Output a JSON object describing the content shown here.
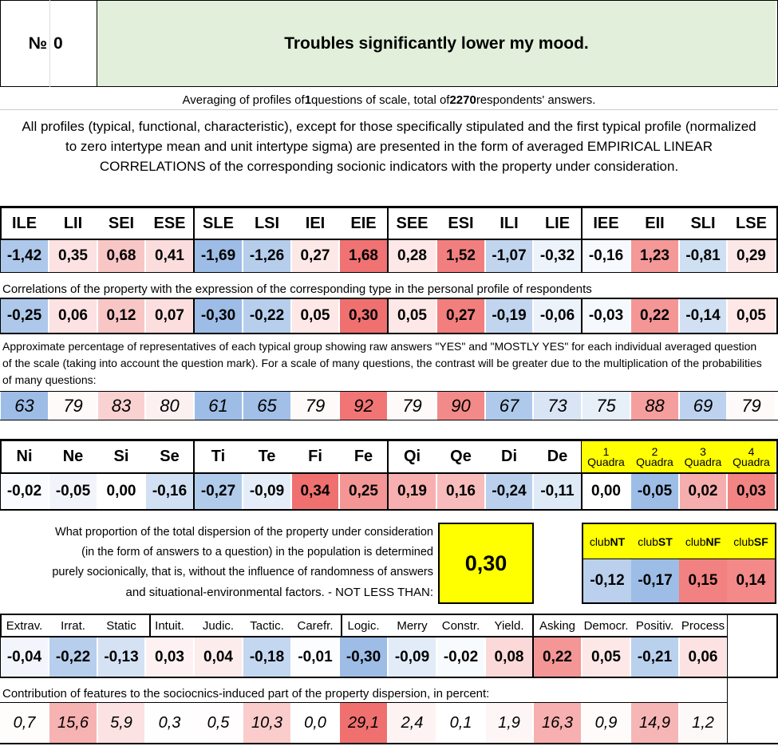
{
  "header": {
    "number_label": "№",
    "number": "0",
    "title": "Troubles significantly lower my mood."
  },
  "intro": {
    "averaging": [
      "Averaging of profiles of ",
      "1",
      " questions of scale, total of ",
      "2270",
      " respondents' answers."
    ],
    "description": "All profiles (typical, functional, characteristic), except for those specifically stipulated and the first typical profile (normalized to zero intertype mean and unit intertype sigma) are presented in the form of averaged EMPIRICAL LINEAR CORRELATIONS of the corresponding socionic indicators with the property under consideration."
  },
  "types": {
    "labels": [
      "ILE",
      "LII",
      "SEI",
      "ESE",
      "SLE",
      "LSI",
      "IEI",
      "EIE",
      "SEE",
      "ESI",
      "ILI",
      "LIE",
      "IEE",
      "EII",
      "SLI",
      "LSE"
    ],
    "profile": [
      "-1,42",
      "0,35",
      "0,68",
      "0,41",
      "-1,69",
      "-1,26",
      "0,27",
      "1,68",
      "0,28",
      "1,52",
      "-1,07",
      "-0,32",
      "-0,16",
      "1,23",
      "-0,81",
      "0,29"
    ],
    "correlations_note": "Correlations of the property with the expression of the corresponding type in the personal profile of respondents",
    "correlations": [
      "-0,25",
      "0,06",
      "0,12",
      "0,07",
      "-0,30",
      "-0,22",
      "0,05",
      "0,30",
      "0,05",
      "0,27",
      "-0,19",
      "-0,06",
      "-0,03",
      "0,22",
      "-0,14",
      "0,05"
    ],
    "percent_note": "Approximate percentage of representatives of each typical group showing raw answers \"YES\" and \"MOSTLY YES\" for each individual averaged question of the scale (taking into account the question mark). For a scale of many questions, the contrast will be greater due to the multiplication of the probabilities of many questions:",
    "percent": [
      "63",
      "79",
      "83",
      "80",
      "61",
      "65",
      "79",
      "92",
      "79",
      "90",
      "67",
      "73",
      "75",
      "88",
      "69",
      "79"
    ]
  },
  "functions": {
    "labels": [
      "Ni",
      "Ne",
      "Si",
      "Se",
      "Ti",
      "Te",
      "Fi",
      "Fe",
      "Qi",
      "Qe",
      "Di",
      "De"
    ],
    "values": [
      "-0,02",
      "-0,05",
      "0,00",
      "-0,16",
      "-0,27",
      "-0,09",
      "0,34",
      "0,25",
      "0,19",
      "0,16",
      "-0,24",
      "-0,11"
    ],
    "quadra_nums": [
      "1",
      "2",
      "3",
      "4"
    ],
    "quadra_word": "Quadra",
    "quadra_values": [
      "0,00",
      "-0,05",
      "0,02",
      "0,03"
    ]
  },
  "proportion": {
    "text_lines": [
      "What proportion of the total dispersion of the property under consideration",
      "(in the form of answers to a question) in the population is determined",
      "purely socionically, that is, without the influence of randomness of answers",
      "and situational-environmental factors. - NOT LESS THAN:"
    ],
    "value": "0,30"
  },
  "clubs": {
    "prefix": "club",
    "names": [
      "NT",
      "ST",
      "NF",
      "SF"
    ],
    "values": [
      "-0,12",
      "-0,17",
      "0,15",
      "0,14"
    ]
  },
  "traits": {
    "labels": [
      "Extrav.",
      "Irrat.",
      "Static",
      "Intuit.",
      "Judic.",
      "Tactic.",
      "Carefr.",
      "Logic.",
      "Merry",
      "Constr.",
      "Yield.",
      "Asking",
      "Democr.",
      "Positiv.",
      "Process"
    ],
    "values": [
      "-0,04",
      "-0,22",
      "-0,13",
      "0,03",
      "0,04",
      "-0,18",
      "-0,01",
      "-0,30",
      "-0,09",
      "-0,02",
      "0,08",
      "0,22",
      "0,05",
      "-0,21",
      "0,06"
    ],
    "contribution_note": "Contribution of features to the sociocnics-induced part of the property dispersion, in percent:",
    "contribution": [
      "0,7",
      "15,6",
      "5,9",
      "0,3",
      "0,5",
      "10,3",
      "0,0",
      "29,1",
      "2,4",
      "0,1",
      "1,9",
      "16,3",
      "0,9",
      "14,9",
      "1,2"
    ]
  },
  "colors": {
    "title_bg": "#e2efda",
    "highlight_yellow": "#ffff00",
    "strong_red": "#f07070",
    "strong_blue": "#9dbde6"
  }
}
